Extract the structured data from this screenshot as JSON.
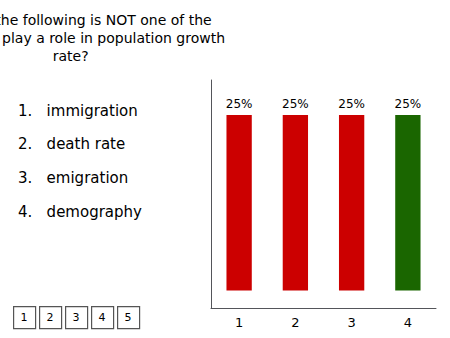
{
  "chart_data": {
    "type": "bar",
    "title": "Which of the following is NOT one of the\nfactors that play a role in population growth\nrate?",
    "categories": [
      "1",
      "2",
      "3",
      "4"
    ],
    "values": [
      25,
      25,
      25,
      25
    ],
    "value_labels": [
      "25%",
      "25%",
      "25%",
      "25%"
    ],
    "colors": [
      "#cc0000",
      "#cc0000",
      "#cc0000",
      "#1a6600"
    ],
    "data_labels": true,
    "ylim": [
      -2.5,
      30
    ],
    "tick_labels": "x",
    "grid": false,
    "annotations": [
      "1.   immigration",
      "2.   death rate",
      "3.   emigration",
      "4.   demography",
      "1",
      "2",
      "3",
      "4",
      "5"
    ]
  }
}
